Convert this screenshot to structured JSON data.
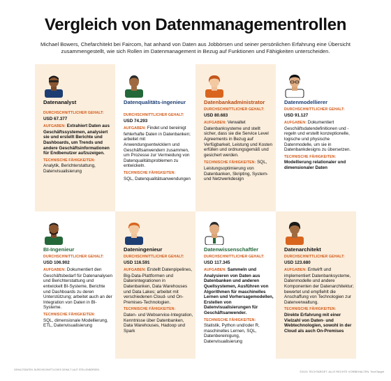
{
  "title": "Vergleich von Datenmanagementrollen",
  "subtitle": "Michael Bowers, Chefarchitekt bei Faircom, hat anhand von Daten aus Jobbörsen und seiner persönlichen Erfahrung eine Übersicht zusammengestellt, wie sich Rollen im Datenmanagement in Bezug auf Funktionen und Fähigkeiten unterscheiden.",
  "labels": {
    "salary": "DURCHSCHNITTLICHER GEHALT:",
    "tasks": "AUFGABEN:",
    "skills": "TECHNISCHE FÄHIGKEITEN:"
  },
  "roles": [
    {
      "name": "Datenanalyst",
      "salary": "USD 67.377",
      "tasks": "Extrahiert Daten aus Geschäftssystemen, analysiert sie und erstellt Berichte und Dashboards, um Trends und andere Geschäftsinformationen für Endbenutzer aufzuzeigen.",
      "skills": "Analytik, Berichterstattung, Datenvisualisierung"
    },
    {
      "name": "Datenqualitäts-ingenieur",
      "salary": "USD 74.293",
      "tasks": "Findet und bereinigt fehlerhafte Daten in Datenbanken; arbeitet mit Anwendungsentwicklern und Geschäftsanwendern zusammen, um Prozesse zur Vermeidung von Datenqualitätsproblemen zu entwickeln.",
      "skills": "SQL, Datenqualitätsanwendungen"
    },
    {
      "name": "Datenbankadministrator",
      "salary": "USD 80.683",
      "tasks": "Verwaltet Datenbanksysteme und stellt sicher, dass sie die Service Level Agreements in Bezug auf Verfügbarkeit, Leistung und Kosten erfüllen und ordnungsgemäß und gesichert werden.",
      "skills": "SQL, Leistungsoptimierung von Datenbanken, Skripting, System- und Netzwerkdesign"
    },
    {
      "name": "Datenmodellierer",
      "salary": "USD 91.127",
      "tasks": "Dokumentiert Geschäftsdatendefinitionen und -regeln und erstellt konzeptionelle, logische und physische Datenmodelle, um sie in Datenbankdesigns zu übersetzen.",
      "skills": "Modellierung relationaler und dimensionaler Daten"
    },
    {
      "name": "BI-Ingenieur",
      "salary": "USD 106.902",
      "tasks": "Dokumentiert den Geschäftsbedarf für Datenanalysen und Berichterstattung und entwickelt BI-Systeme, Berichte und Dashboards zu deren Unterstützung; arbeitet auch an der Integration von Daten in BI-Systeme.",
      "skills": "SQL, dimensionale Modellierung, ETL, Datenvisualisierung"
    },
    {
      "name": "Dateningenieur",
      "salary": "USD 116.591",
      "tasks": "Erstellt Datenpipelines, Big-Data-Plattformen und Datenintegrationen in Datenbanken, Data Warehouses und Data Lakes; arbeitet mit verschiedenen Cloud- und On-Premises-Technologien.",
      "skills": "Daten- und Webservice-Integration, Kenntnisse über Datenbanken, Data Warehouses, Hadoop und Spark"
    },
    {
      "name": "Datenwissenschaftler",
      "salary": "USD 117.345",
      "tasks": "Sammeln und Analysieren von Daten aus Datenbanken und anderen Quellsystemen, Ausführen von Algorithmen für maschinelles Lernen und Vorhersagemodellen, Erstellen von Datenvisualisierungen für Geschäftsanwender.",
      "skills": "Statistik, Python und/oder R, maschinelles Lernen, SQL, Datenbereinigung, Datenvisualisierung"
    },
    {
      "name": "Datenarchitekt",
      "salary": "USD 123.680",
      "tasks": "Entwirft und implementiert Datenbanksysteme, Datenmodelle und andere Komponenten der Datenarchitektur; bewertet und empfiehlt die Anschaffung von Technologien zur Datenverwaltung.",
      "skills": "Direkte Erfahrung mit einer Vielzahl von Daten- und Webtechnologien, sowohl in der Cloud als auch On-Premises"
    }
  ],
  "footer": {
    "left": "GEHALTSDATEN: DURCHSCHNITTLICHES GEHALT LAUT STELLENBÖRSEN.",
    "right": "©2021 TECHTARGET. ALLE RECHTE VORBEHALTEN. TechTarget"
  },
  "colors": {
    "shade": "#fbeedd",
    "label": "#d25a17",
    "blue": "#1d3e73",
    "green": "#24683a",
    "orange": "#b84a12"
  }
}
